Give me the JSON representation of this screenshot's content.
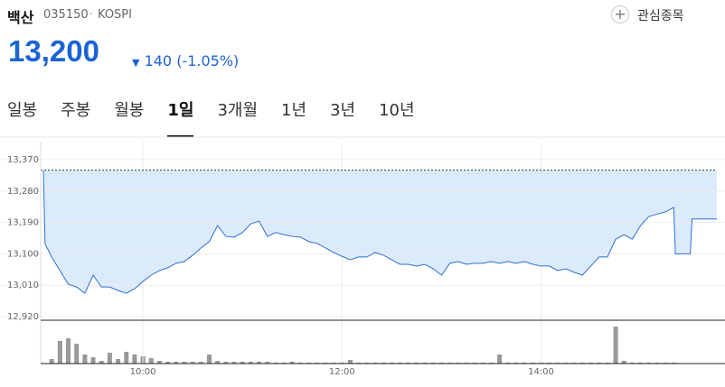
{
  "header": {
    "name": "백산",
    "code": "035150",
    "market": "KOSPI",
    "watch": "관심종목",
    "price": "13,200",
    "change": "140",
    "change_pct": "(-1.05%)"
  },
  "tabs": {
    "items": [
      "일봉",
      "주봉",
      "월봉",
      "1일",
      "3개월",
      "1년",
      "3년",
      "10년"
    ],
    "active": "1일"
  },
  "chart_data": [
    {
      "type": "area",
      "reference": 13340,
      "color": "#2f6fd6",
      "fill": "#dcebfc",
      "xlim": [
        "09:00",
        "15:46"
      ],
      "ylim": [
        12920,
        13370
      ],
      "yticks": [
        {
          "value": 13370,
          "label": "13,370"
        },
        {
          "value": 13280,
          "label": "13,280"
        },
        {
          "value": 13190,
          "label": "13,190"
        },
        {
          "value": 13100,
          "label": "13,100"
        },
        {
          "value": 13010,
          "label": "13,010"
        },
        {
          "value": 12920,
          "label": "12,920"
        }
      ],
      "grid": true,
      "series": [
        {
          "name": "백산",
          "color": "#2f6fd6",
          "x": [
            "09:00",
            "09:01",
            "09:05",
            "09:10",
            "09:15",
            "09:20",
            "09:25",
            "09:30",
            "09:35",
            "09:40",
            "09:45",
            "09:50",
            "09:55",
            "10:00",
            "10:05",
            "10:10",
            "10:15",
            "10:20",
            "10:25",
            "10:30",
            "10:35",
            "10:40",
            "10:45",
            "10:50",
            "10:55",
            "11:00",
            "11:05",
            "11:10",
            "11:15",
            "11:20",
            "11:25",
            "11:30",
            "11:35",
            "11:40",
            "11:45",
            "11:50",
            "11:55",
            "12:00",
            "12:05",
            "12:10",
            "12:15",
            "12:20",
            "12:25",
            "12:30",
            "12:35",
            "12:40",
            "12:45",
            "12:50",
            "12:55",
            "13:00",
            "13:05",
            "13:10",
            "13:15",
            "13:20",
            "13:25",
            "13:30",
            "13:35",
            "13:40",
            "13:45",
            "13:50",
            "13:55",
            "14:00",
            "14:05",
            "14:10",
            "14:15",
            "14:20",
            "14:25",
            "14:30",
            "14:35",
            "14:40",
            "14:45",
            "14:50",
            "14:55",
            "15:00",
            "15:05",
            "15:10",
            "15:15",
            "15:20",
            "15:21",
            "15:30",
            "15:31",
            "15:46"
          ],
          "values": [
            13339,
            13129,
            13091,
            13052,
            13013,
            13005,
            12987,
            13039,
            13005,
            13005,
            12995,
            12987,
            13000,
            13021,
            13039,
            13052,
            13060,
            13073,
            13078,
            13096,
            13117,
            13135,
            13181,
            13150,
            13148,
            13161,
            13186,
            13194,
            13150,
            13161,
            13155,
            13150,
            13148,
            13135,
            13130,
            13117,
            13104,
            13093,
            13083,
            13091,
            13091,
            13104,
            13096,
            13083,
            13070,
            13070,
            13065,
            13070,
            13057,
            13039,
            13073,
            13078,
            13070,
            13073,
            13073,
            13078,
            13073,
            13078,
            13073,
            13078,
            13070,
            13065,
            13065,
            13052,
            13057,
            13047,
            13039,
            13065,
            13091,
            13091,
            13142,
            13155,
            13142,
            13181,
            13207,
            13214,
            13220,
            13233,
            13100,
            13100,
            13200,
            13200
          ]
        }
      ]
    },
    {
      "type": "bar",
      "color": "#999999",
      "xlim": [
        "09:00",
        "15:46"
      ],
      "ylim": [
        0,
        46
      ],
      "xticks": [
        "10:00",
        "12:00",
        "14:00"
      ],
      "x": [
        "09:05",
        "09:10",
        "09:15",
        "09:20",
        "09:25",
        "09:30",
        "09:35",
        "09:40",
        "09:45",
        "09:50",
        "09:55",
        "10:00",
        "10:05",
        "10:10",
        "10:15",
        "10:20",
        "10:25",
        "10:30",
        "10:35",
        "10:40",
        "10:45",
        "10:50",
        "10:55",
        "11:00",
        "11:05",
        "11:10",
        "11:15",
        "11:20",
        "11:25",
        "11:30",
        "11:35",
        "11:40",
        "11:45",
        "11:50",
        "11:55",
        "12:00",
        "12:05",
        "12:10",
        "12:15",
        "12:20",
        "12:25",
        "12:30",
        "12:35",
        "12:40",
        "12:45",
        "12:50",
        "12:55",
        "13:00",
        "13:05",
        "13:10",
        "13:15",
        "13:20",
        "13:25",
        "13:30",
        "13:35",
        "13:40",
        "13:45",
        "13:50",
        "13:55",
        "14:00",
        "14:05",
        "14:10",
        "14:15",
        "14:20",
        "14:25",
        "14:30",
        "14:35",
        "14:40",
        "14:45",
        "14:50",
        "14:55",
        "15:00",
        "15:05",
        "15:10",
        "15:15",
        "15:20"
      ],
      "values": [
        5,
        25,
        28,
        22,
        10,
        7,
        3,
        12,
        5,
        13,
        10,
        8,
        6,
        3,
        2,
        2,
        2,
        2,
        2,
        10,
        3,
        2,
        2,
        2,
        2,
        2,
        2,
        1,
        1,
        2,
        1,
        1,
        1,
        1,
        1,
        1,
        4,
        1,
        1,
        1,
        1,
        1,
        1,
        1,
        1,
        1,
        1,
        1,
        1,
        1,
        1,
        1,
        1,
        1,
        10,
        1,
        1,
        1,
        1,
        1,
        1,
        1,
        1,
        1,
        1,
        1,
        1,
        1,
        41,
        3,
        1,
        1,
        1,
        1,
        1,
        1
      ]
    }
  ]
}
